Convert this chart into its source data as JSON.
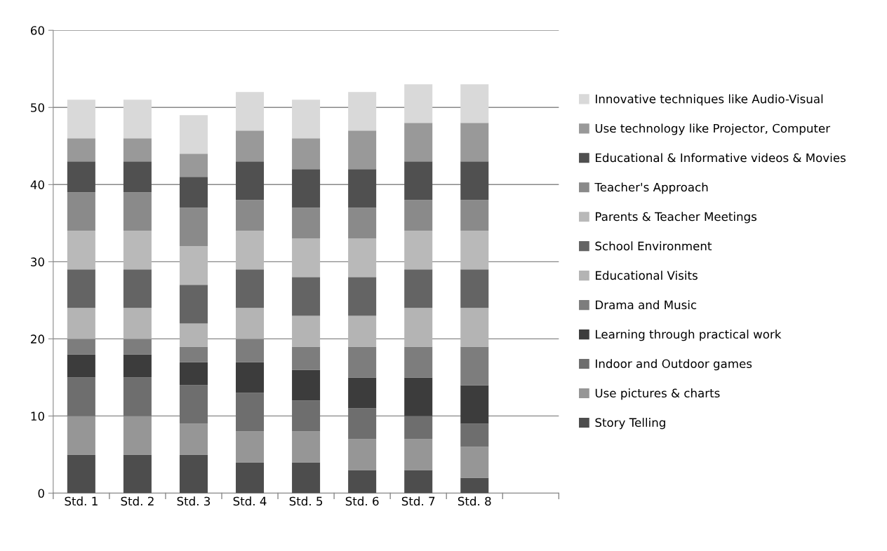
{
  "chart_data": {
    "type": "bar",
    "stacked": true,
    "categories": [
      "Std. 1",
      "Std. 2",
      "Std. 3",
      "Std. 4",
      "Std. 5",
      "Std. 6",
      "Std. 7",
      "Std. 8",
      null
    ],
    "ylim": [
      0,
      60
    ],
    "yticks": [
      0,
      10,
      20,
      30,
      40,
      50,
      60
    ],
    "grid": "y",
    "legend": "right",
    "series": [
      {
        "name": "Story Telling",
        "color": "#4d4d4d",
        "values": [
          5,
          5,
          5,
          4,
          4,
          3,
          3,
          2,
          null
        ]
      },
      {
        "name": "Use pictures & charts",
        "color": "#969696",
        "values": [
          5,
          5,
          4,
          4,
          4,
          4,
          4,
          4,
          null
        ]
      },
      {
        "name": "Indoor and Outdoor games",
        "color": "#6e6e6e",
        "values": [
          5,
          5,
          5,
          5,
          4,
          4,
          3,
          3,
          null
        ]
      },
      {
        "name": "Learning through practical work",
        "color": "#3c3c3c",
        "values": [
          3,
          3,
          3,
          4,
          4,
          4,
          5,
          5,
          null
        ]
      },
      {
        "name": "Drama and Music",
        "color": "#7d7d7d",
        "values": [
          2,
          2,
          2,
          3,
          3,
          4,
          4,
          5,
          null
        ]
      },
      {
        "name": "Educational Visits",
        "color": "#b4b4b4",
        "values": [
          4,
          4,
          3,
          4,
          4,
          4,
          5,
          5,
          null
        ]
      },
      {
        "name": "School Environment",
        "color": "#646464",
        "values": [
          5,
          5,
          5,
          5,
          5,
          5,
          5,
          5,
          null
        ]
      },
      {
        "name": "Parents & Teacher Meetings",
        "color": "#b9b9b9",
        "values": [
          5,
          5,
          5,
          5,
          5,
          5,
          5,
          5,
          null
        ]
      },
      {
        "name": "Teacher's Approach",
        "color": "#8a8a8a",
        "values": [
          5,
          5,
          5,
          4,
          4,
          4,
          4,
          4,
          null
        ]
      },
      {
        "name": "Educational & Informative videos & Movies",
        "color": "#505050",
        "values": [
          4,
          4,
          4,
          5,
          5,
          5,
          5,
          5,
          null
        ]
      },
      {
        "name": "Use technology like Projector, Computer",
        "color": "#999999",
        "values": [
          3,
          3,
          3,
          4,
          4,
          5,
          5,
          5,
          null
        ]
      },
      {
        "name": "Innovative techniques like Audio-Visual",
        "color": "#d9d9d9",
        "values": [
          5,
          5,
          5,
          5,
          5,
          5,
          5,
          5,
          null
        ]
      }
    ]
  }
}
